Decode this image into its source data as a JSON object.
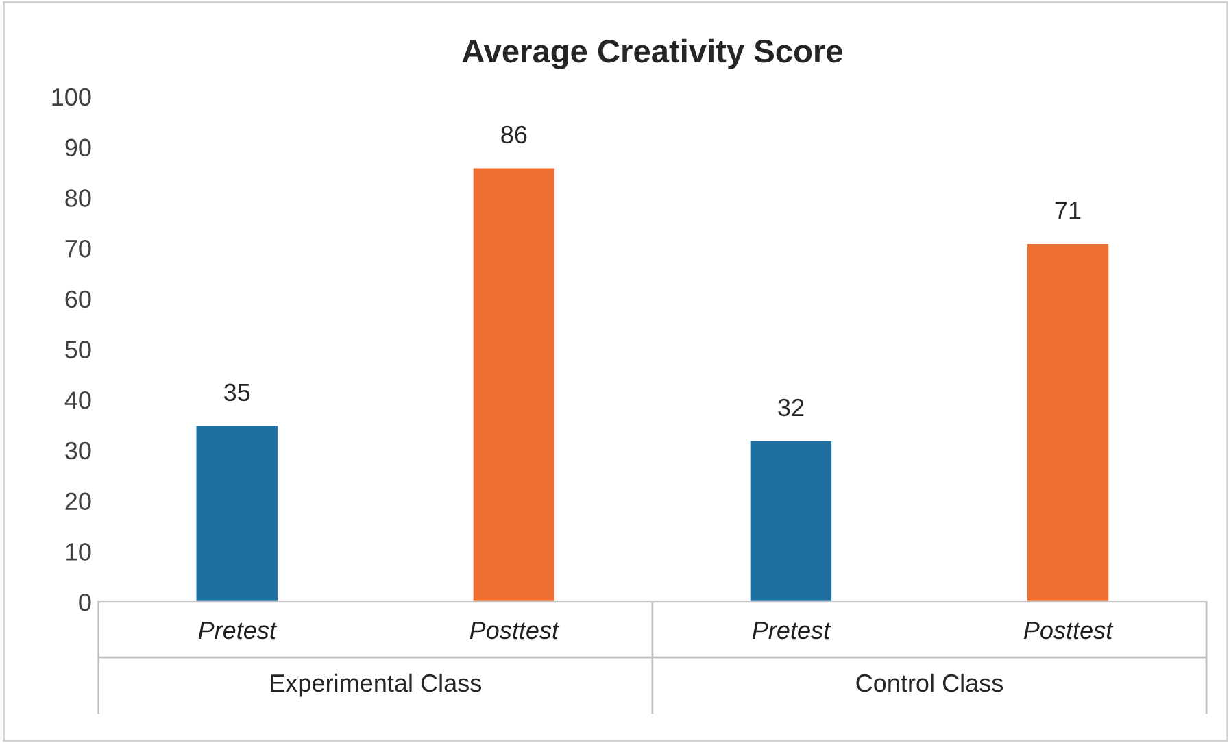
{
  "chart_data": {
    "type": "bar",
    "title": "Average Creativity Score",
    "categories": [
      "Pretest",
      "Posttest",
      "Pretest",
      "Posttest"
    ],
    "values": [
      35,
      86,
      32,
      71
    ],
    "colors": [
      "#1f6fa0",
      "#ed7032",
      "#1f6fa0",
      "#ed7032"
    ],
    "ylim": [
      0,
      100
    ],
    "yticks": [
      0,
      10,
      20,
      30,
      40,
      50,
      60,
      70,
      80,
      90,
      100
    ],
    "data_labels": true,
    "grid": false,
    "legend": false,
    "annotations": [
      "Experimental Class",
      "Control Class"
    ]
  }
}
